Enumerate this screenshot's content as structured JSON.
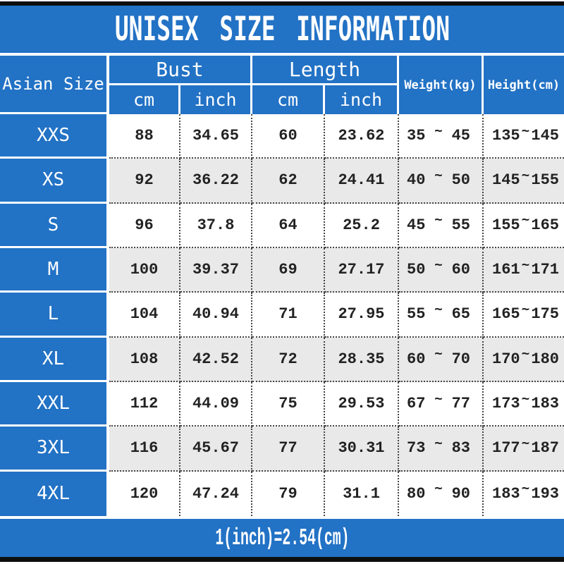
{
  "title": "UNISEX SIZE INFORMATION",
  "footer_note": "1(inch)=2.54(cm)",
  "colors": {
    "blue": "#2272c5",
    "alt_row": "#e9e9e9",
    "border_black": "#0e0e0e",
    "text_dark": "#222222",
    "header_text": "#ffffff"
  },
  "chart_data": {
    "type": "table",
    "title": "UNISEX SIZE INFORMATION",
    "corner_header": "Asian Size",
    "column_groups": [
      {
        "label": "Bust",
        "subs": [
          "cm",
          "inch"
        ]
      },
      {
        "label": "Length",
        "subs": [
          "cm",
          "inch"
        ]
      }
    ],
    "single_columns": [
      "Weight(kg)",
      "Height(cm)"
    ],
    "range_separator": "~",
    "note": "1(inch)=2.54(cm)",
    "rows": [
      {
        "size": "XXS",
        "bust_cm": "88",
        "bust_inch": "34.65",
        "length_cm": "60",
        "length_inch": "23.62",
        "weight_min": "35",
        "weight_max": "45",
        "height_min": "135",
        "height_max": "145"
      },
      {
        "size": "XS",
        "bust_cm": "92",
        "bust_inch": "36.22",
        "length_cm": "62",
        "length_inch": "24.41",
        "weight_min": "40",
        "weight_max": "50",
        "height_min": "145",
        "height_max": "155"
      },
      {
        "size": "S",
        "bust_cm": "96",
        "bust_inch": "37.8",
        "length_cm": "64",
        "length_inch": "25.2",
        "weight_min": "45",
        "weight_max": "55",
        "height_min": "155",
        "height_max": "165"
      },
      {
        "size": "M",
        "bust_cm": "100",
        "bust_inch": "39.37",
        "length_cm": "69",
        "length_inch": "27.17",
        "weight_min": "50",
        "weight_max": "60",
        "height_min": "161",
        "height_max": "171"
      },
      {
        "size": "L",
        "bust_cm": "104",
        "bust_inch": "40.94",
        "length_cm": "71",
        "length_inch": "27.95",
        "weight_min": "55",
        "weight_max": "65",
        "height_min": "165",
        "height_max": "175"
      },
      {
        "size": "XL",
        "bust_cm": "108",
        "bust_inch": "42.52",
        "length_cm": "72",
        "length_inch": "28.35",
        "weight_min": "60",
        "weight_max": "70",
        "height_min": "170",
        "height_max": "180"
      },
      {
        "size": "XXL",
        "bust_cm": "112",
        "bust_inch": "44.09",
        "length_cm": "75",
        "length_inch": "29.53",
        "weight_min": "67",
        "weight_max": "77",
        "height_min": "173",
        "height_max": "183"
      },
      {
        "size": "3XL",
        "bust_cm": "116",
        "bust_inch": "45.67",
        "length_cm": "77",
        "length_inch": "30.31",
        "weight_min": "73",
        "weight_max": "83",
        "height_min": "177",
        "height_max": "187"
      },
      {
        "size": "4XL",
        "bust_cm": "120",
        "bust_inch": "47.24",
        "length_cm": "79",
        "length_inch": "31.1",
        "weight_min": "80",
        "weight_max": "90",
        "height_min": "183",
        "height_max": "193"
      }
    ]
  }
}
